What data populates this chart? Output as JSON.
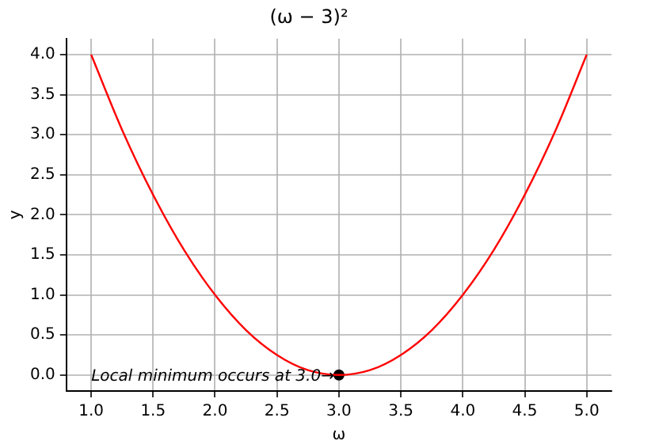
{
  "chart_data": {
    "type": "line",
    "title": "(ω − 3)²",
    "xlabel": "ω",
    "ylabel": "y",
    "x": [
      1,
      1.25,
      1.5,
      1.75,
      2,
      2.25,
      2.5,
      2.75,
      3,
      3.25,
      3.5,
      3.75,
      4,
      4.25,
      4.5,
      4.75,
      5
    ],
    "series": [
      {
        "color": "#ff0000",
        "values": [
          4,
          3.06,
          2.25,
          1.56,
          1,
          0.56,
          0.25,
          0.06,
          0,
          0.06,
          0.25,
          0.56,
          1,
          1.56,
          2.25,
          3.06,
          4
        ]
      },
      {
        "type": "scatter",
        "color": "#000000",
        "marker": "circle",
        "x": [
          3
        ],
        "values": [
          0
        ]
      }
    ],
    "xlim": [
      0.8,
      5.2
    ],
    "ylim": [
      -0.2,
      4.2
    ],
    "xticks": [
      {
        "value": 1,
        "label": "1.0"
      },
      {
        "value": 1.5,
        "label": "1.5"
      },
      {
        "value": 2,
        "label": "2.0"
      },
      {
        "value": 2.5,
        "label": "2.5"
      },
      {
        "value": 3,
        "label": "3.0"
      },
      {
        "value": 3.5,
        "label": "3.5"
      },
      {
        "value": 4,
        "label": "4.0"
      },
      {
        "value": 4.5,
        "label": "4.5"
      },
      {
        "value": 5,
        "label": "5.0"
      }
    ],
    "yticks": [
      {
        "value": 0,
        "label": "0.0"
      },
      {
        "value": 0.5,
        "label": "0.5"
      },
      {
        "value": 1,
        "label": "1.0"
      },
      {
        "value": 1.5,
        "label": "1.5"
      },
      {
        "value": 2,
        "label": "2.0"
      },
      {
        "value": 2.5,
        "label": "2.5"
      },
      {
        "value": 3,
        "label": "3.0"
      },
      {
        "value": 3.5,
        "label": "3.5"
      },
      {
        "value": 4,
        "label": "4.0"
      }
    ],
    "grid": true,
    "line_style": "solid",
    "annotations": [
      {
        "text": "Local minimum occurs at 3.0→",
        "x": 3,
        "y": 0
      }
    ]
  }
}
